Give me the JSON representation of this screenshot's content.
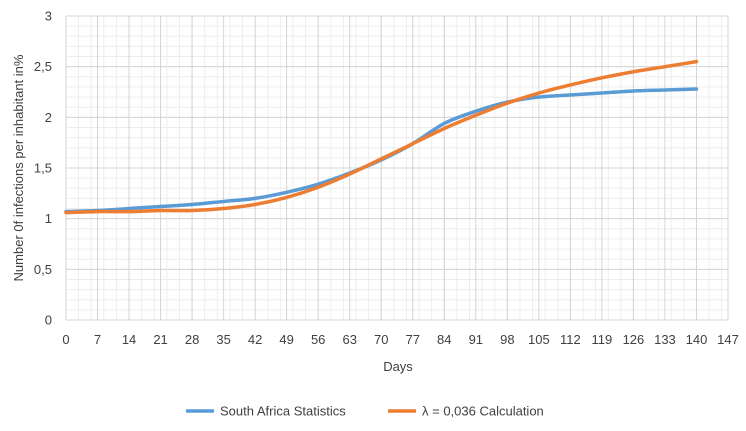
{
  "chart_data": {
    "type": "line",
    "xlabel": "Days",
    "ylabel": "Number 0f infections per inhabitant in%",
    "x_ticks": [
      0,
      7,
      14,
      21,
      28,
      35,
      42,
      49,
      56,
      63,
      70,
      77,
      84,
      91,
      98,
      105,
      112,
      119,
      126,
      133,
      140,
      147
    ],
    "y_ticks": [
      "0",
      "0,5",
      "1",
      "1,5",
      "2",
      "2,5",
      "3"
    ],
    "xlim": [
      0,
      147
    ],
    "ylim": [
      0,
      3
    ],
    "grid": true,
    "legend_position": "bottom",
    "series": [
      {
        "name": "South Africa Statistics",
        "color": "#5b9bd5",
        "points": [
          [
            0,
            1.07
          ],
          [
            7,
            1.08
          ],
          [
            14,
            1.1
          ],
          [
            21,
            1.12
          ],
          [
            28,
            1.14
          ],
          [
            35,
            1.17
          ],
          [
            42,
            1.2
          ],
          [
            49,
            1.26
          ],
          [
            56,
            1.34
          ],
          [
            63,
            1.45
          ],
          [
            70,
            1.58
          ],
          [
            77,
            1.74
          ],
          [
            84,
            1.94
          ],
          [
            91,
            2.06
          ],
          [
            98,
            2.15
          ],
          [
            105,
            2.2
          ],
          [
            112,
            2.22
          ],
          [
            119,
            2.24
          ],
          [
            126,
            2.26
          ],
          [
            133,
            2.27
          ],
          [
            140,
            2.28
          ]
        ]
      },
      {
        "name": "λ = 0,036 Calculation",
        "color": "#ed7d31",
        "points": [
          [
            0,
            1.06
          ],
          [
            7,
            1.07
          ],
          [
            14,
            1.07
          ],
          [
            21,
            1.08
          ],
          [
            28,
            1.08
          ],
          [
            35,
            1.1
          ],
          [
            42,
            1.14
          ],
          [
            49,
            1.21
          ],
          [
            56,
            1.31
          ],
          [
            63,
            1.44
          ],
          [
            70,
            1.59
          ],
          [
            77,
            1.74
          ],
          [
            84,
            1.89
          ],
          [
            91,
            2.02
          ],
          [
            98,
            2.14
          ],
          [
            105,
            2.24
          ],
          [
            112,
            2.32
          ],
          [
            119,
            2.39
          ],
          [
            126,
            2.45
          ],
          [
            133,
            2.5
          ],
          [
            140,
            2.55
          ]
        ]
      }
    ]
  }
}
